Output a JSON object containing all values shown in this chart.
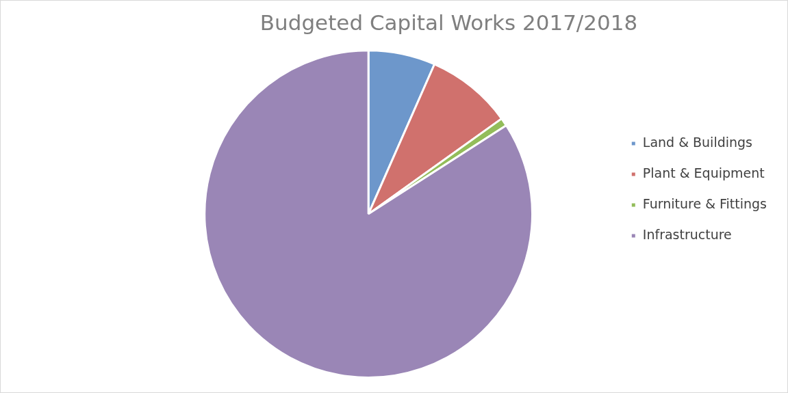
{
  "chart_data": {
    "type": "pie",
    "title": "Budgeted Capital Works 2017/2018",
    "categories": [
      "Land & Buildings",
      "Plant & Equipment",
      "Furniture & Fittings",
      "Infrastructure"
    ],
    "values": [
      6.6,
      8.5,
      0.8,
      84.1
    ],
    "colors": [
      "#6d97cb",
      "#d0716d",
      "#93bd5a",
      "#9a86b6"
    ],
    "legend": "right"
  }
}
